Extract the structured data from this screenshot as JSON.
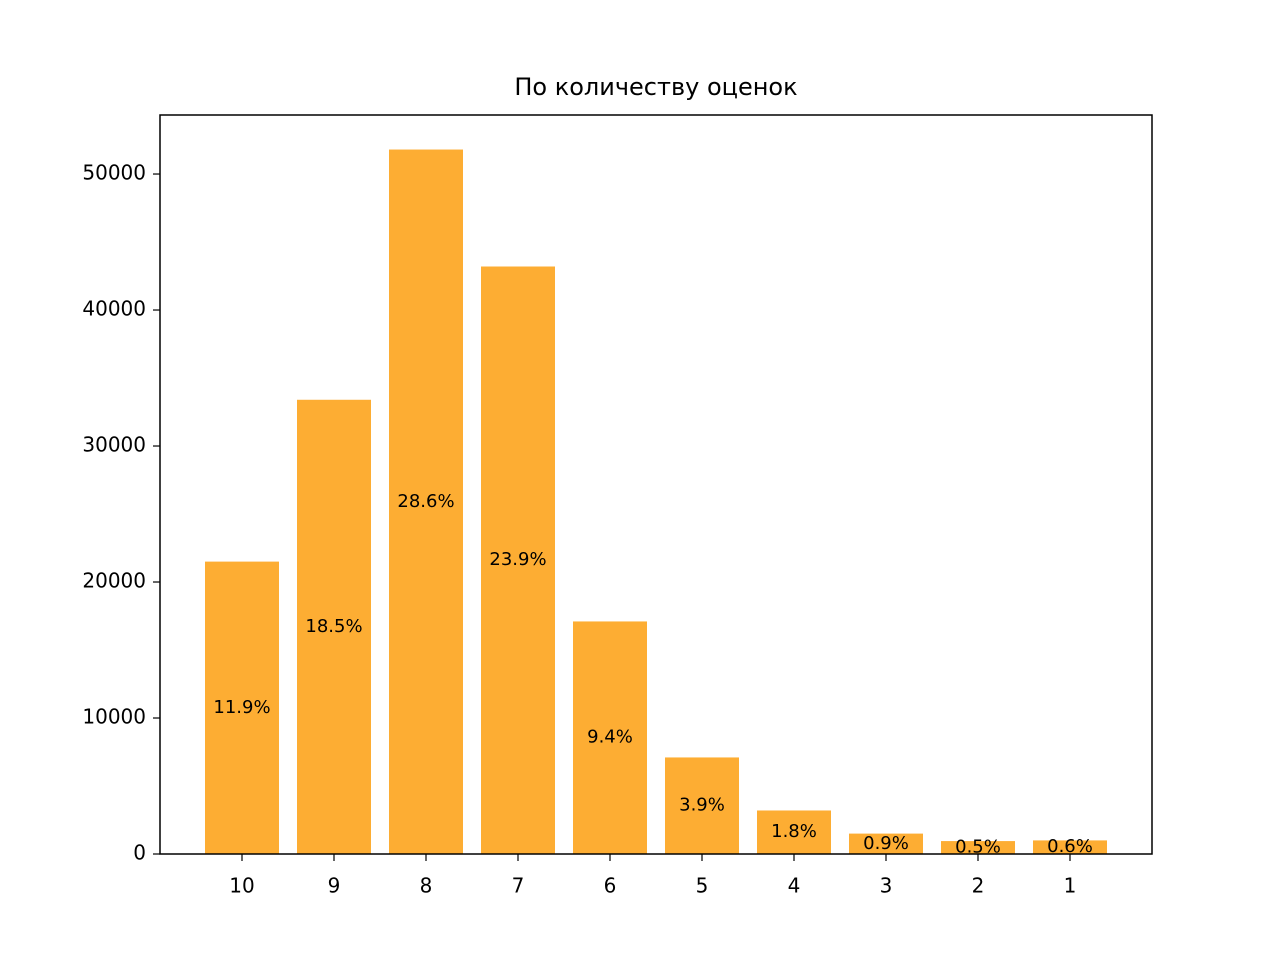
{
  "chart_data": {
    "type": "bar",
    "title": "По количеству оценок",
    "categories": [
      "10",
      "9",
      "8",
      "7",
      "6",
      "5",
      "4",
      "3",
      "2",
      "1"
    ],
    "values": [
      21500,
      33400,
      51800,
      43200,
      17100,
      7100,
      3200,
      1500,
      950,
      1000
    ],
    "percent_labels": [
      "11.9%",
      "18.5%",
      "28.6%",
      "23.9%",
      "9.4%",
      "3.9%",
      "1.8%",
      "0.9%",
      "0.5%",
      "0.6%"
    ],
    "color": "#fdad33",
    "ylim": [
      0,
      54340
    ],
    "yticks": [
      0,
      10000,
      20000,
      30000,
      40000,
      50000
    ],
    "grid": false
  }
}
